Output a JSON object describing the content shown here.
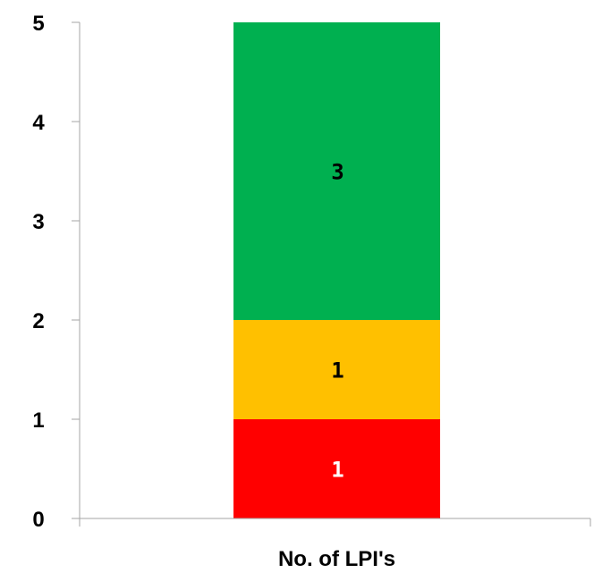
{
  "chart_data": {
    "type": "bar",
    "stacked": true,
    "categories": [
      "No. of LPI's"
    ],
    "series": [
      {
        "values": [
          1
        ],
        "color": "#ff0000",
        "label_color": "#ffffff"
      },
      {
        "values": [
          1
        ],
        "color": "#ffc000",
        "label_color": "#000000"
      },
      {
        "values": [
          3
        ],
        "color": "#00b050",
        "label_color": "#000000"
      }
    ],
    "data_labels": [
      "1",
      "1",
      "3"
    ],
    "y_ticks": [
      "0",
      "1",
      "2",
      "3",
      "4",
      "5"
    ],
    "ylim": [
      0,
      5
    ],
    "grid": false,
    "legend": "none",
    "axis_color": "#a6a6a6"
  }
}
